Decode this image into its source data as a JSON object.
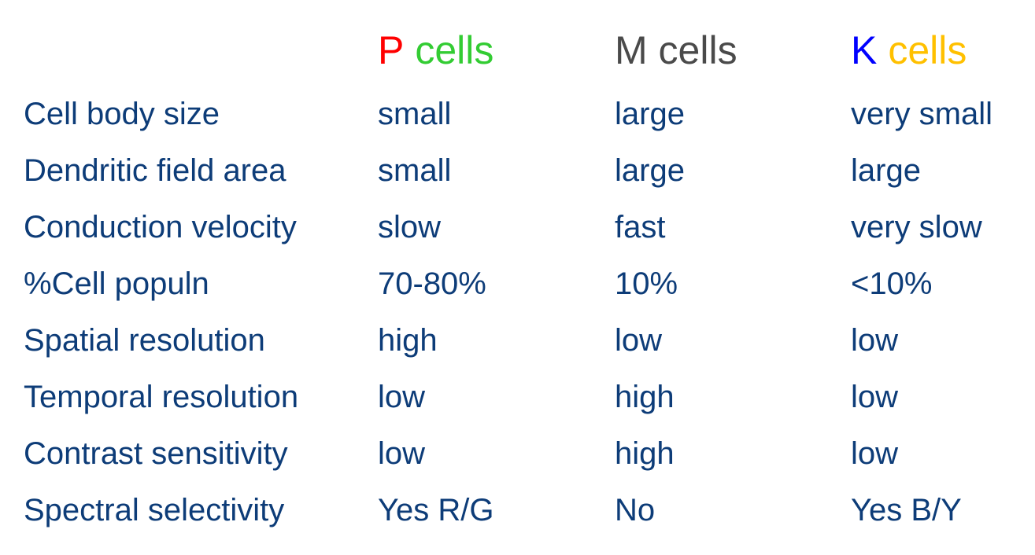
{
  "table": {
    "header": [
      {
        "parts": [
          {
            "text": "P",
            "color": "#ff0000"
          },
          {
            "text": "cells",
            "color": "#33cc33"
          }
        ]
      },
      {
        "parts": [
          {
            "text": "M cells",
            "color": "#4a4a4a"
          }
        ]
      },
      {
        "parts": [
          {
            "text": "K",
            "color": "#0000ff"
          },
          {
            "text": "cells",
            "color": "#ffc000"
          }
        ]
      }
    ],
    "rows": [
      [
        "Cell body size",
        "small",
        "large",
        "very small"
      ],
      [
        "Dendritic field area",
        "small",
        "large",
        "large"
      ],
      [
        "Conduction velocity",
        "slow",
        "fast",
        "very slow"
      ],
      [
        "%Cell populn",
        "70-80%",
        "10%",
        "<10%"
      ],
      [
        "Spatial resolution",
        "high",
        "low",
        "low"
      ],
      [
        "Temporal resolution",
        "low",
        "high",
        "low"
      ],
      [
        "Contrast sensitivity",
        "low",
        "high",
        "low"
      ],
      [
        "Spectral selectivity",
        "Yes R/G",
        "No",
        "Yes B/Y"
      ]
    ]
  }
}
